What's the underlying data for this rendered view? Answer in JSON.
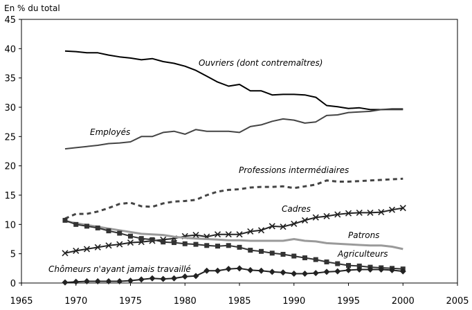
{
  "chart_data": {
    "type": "line",
    "ylabel": "En % du total",
    "xlim": [
      1965,
      2005
    ],
    "ylim": [
      0,
      45
    ],
    "xticks": [
      1965,
      1970,
      1975,
      1980,
      1985,
      1990,
      1995,
      2000,
      2005
    ],
    "yticks": [
      0,
      5,
      10,
      15,
      20,
      25,
      30,
      35,
      40,
      45
    ],
    "grid": false,
    "legend": "inline",
    "x": [
      1969,
      1970,
      1971,
      1972,
      1973,
      1974,
      1975,
      1976,
      1977,
      1978,
      1979,
      1980,
      1981,
      1982,
      1983,
      1984,
      1985,
      1986,
      1987,
      1988,
      1989,
      1990,
      1991,
      1992,
      1993,
      1994,
      1995,
      1996,
      1997,
      1998,
      1999,
      2000
    ],
    "series": [
      {
        "name": "Ouvriers (dont contremaîtres)",
        "color": "#000000",
        "style": "solid",
        "marker": "none",
        "values": [
          39.6,
          39.5,
          39.3,
          39.3,
          38.9,
          38.6,
          38.4,
          38.1,
          38.3,
          37.8,
          37.5,
          37.0,
          36.3,
          35.3,
          34.3,
          33.6,
          33.9,
          32.8,
          32.8,
          32.1,
          32.2,
          32.2,
          32.1,
          31.7,
          30.3,
          30.1,
          29.8,
          29.9,
          29.6,
          29.6,
          29.7,
          29.7
        ]
      },
      {
        "name": "Employés",
        "color": "#444444",
        "style": "solid",
        "marker": "none",
        "values": [
          22.9,
          23.1,
          23.3,
          23.5,
          23.8,
          23.9,
          24.1,
          25.0,
          25.0,
          25.7,
          25.9,
          25.4,
          26.2,
          25.9,
          25.9,
          25.9,
          25.7,
          26.7,
          27.0,
          27.6,
          28.0,
          27.8,
          27.3,
          27.5,
          28.6,
          28.7,
          29.1,
          29.2,
          29.3,
          29.6,
          29.6,
          29.6
        ]
      },
      {
        "name": "Professions intermédiaires",
        "color": "#444444",
        "style": "dashed",
        "marker": "none",
        "values": [
          11.0,
          11.8,
          11.8,
          12.2,
          12.8,
          13.5,
          13.7,
          13.1,
          13.0,
          13.6,
          13.9,
          14.0,
          14.2,
          15.0,
          15.6,
          15.9,
          16.0,
          16.3,
          16.4,
          16.4,
          16.5,
          16.2,
          16.5,
          16.8,
          17.5,
          17.3,
          17.3,
          17.4,
          17.5,
          17.6,
          17.7,
          17.8
        ]
      },
      {
        "name": "Cadres",
        "color": "#222222",
        "style": "solid",
        "marker": "x",
        "values": [
          5.1,
          5.5,
          5.8,
          6.1,
          6.4,
          6.6,
          6.9,
          7.0,
          7.2,
          7.4,
          7.6,
          8.0,
          8.2,
          7.9,
          8.3,
          8.3,
          8.3,
          8.8,
          9.0,
          9.7,
          9.6,
          10.1,
          10.7,
          11.2,
          11.4,
          11.7,
          11.9,
          12.0,
          12.0,
          12.1,
          12.5,
          12.8
        ]
      },
      {
        "name": "Patrons",
        "color": "#9a9a9a",
        "style": "solid",
        "marker": "none",
        "values": [
          10.6,
          10.2,
          9.9,
          9.6,
          9.3,
          9.0,
          8.7,
          8.4,
          8.3,
          8.2,
          7.9,
          7.7,
          7.6,
          7.5,
          7.4,
          7.3,
          7.3,
          7.2,
          7.2,
          7.2,
          7.2,
          7.5,
          7.2,
          7.1,
          6.8,
          6.7,
          6.6,
          6.5,
          6.4,
          6.4,
          6.2,
          5.8
        ]
      },
      {
        "name": "Agriculteurs",
        "color": "#333333",
        "style": "solid",
        "marker": "square",
        "values": [
          10.7,
          10.0,
          9.7,
          9.4,
          8.9,
          8.5,
          8.0,
          7.6,
          7.4,
          7.0,
          6.9,
          6.7,
          6.6,
          6.4,
          6.3,
          6.4,
          6.1,
          5.6,
          5.4,
          5.1,
          4.9,
          4.6,
          4.3,
          4.0,
          3.6,
          3.3,
          3.0,
          2.9,
          2.7,
          2.6,
          2.5,
          2.4
        ]
      },
      {
        "name": "Chômeurs n'ayant jamais travaillé",
        "color": "#222222",
        "style": "solid",
        "marker": "diamond",
        "values": [
          0.1,
          0.2,
          0.3,
          0.3,
          0.3,
          0.3,
          0.4,
          0.6,
          0.8,
          0.7,
          0.8,
          1.1,
          1.2,
          2.1,
          2.1,
          2.4,
          2.5,
          2.2,
          2.1,
          1.9,
          1.8,
          1.6,
          1.6,
          1.7,
          1.9,
          2.0,
          2.2,
          2.3,
          2.3,
          2.3,
          2.2,
          2.0
        ]
      }
    ]
  }
}
